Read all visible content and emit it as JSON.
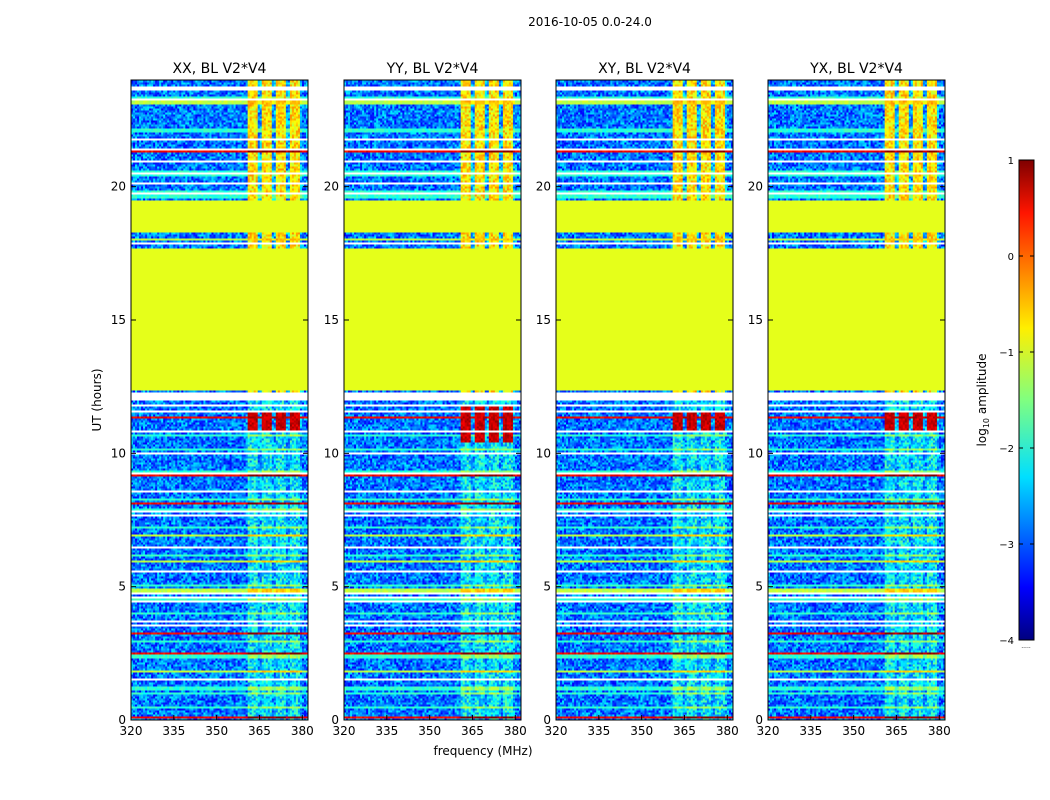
{
  "suptitle": "2016-10-05 0.0-24.0",
  "chart_data": {
    "type": "heatmap",
    "panels": [
      {
        "title": "XX, BL V2*V4",
        "strong_rfi_hours": [
          10.8,
          11.6
        ]
      },
      {
        "title": "YY, BL V2*V4",
        "strong_rfi_hours": [
          10.4,
          11.8
        ]
      },
      {
        "title": "XY, BL V2*V4",
        "strong_rfi_hours": [
          10.8,
          11.6
        ]
      },
      {
        "title": "YX, BL V2*V4",
        "strong_rfi_hours": [
          10.8,
          11.6
        ]
      }
    ],
    "xlabel": "frequency (MHz)",
    "ylabel": "UT (hours)",
    "xlim": [
      320,
      382
    ],
    "ylim": [
      0,
      24
    ],
    "xticks": [
      320,
      335,
      350,
      365,
      380
    ],
    "yticks": [
      0,
      5,
      10,
      15,
      20
    ],
    "flagged_time_ranges": [
      [
        12.4,
        17.7
      ],
      [
        18.3,
        19.5
      ]
    ],
    "flagged_value": -1.0,
    "baseline_log_amplitude": -2.8,
    "rfi_band_mhz": [
      361,
      380
    ],
    "rfi_channels_mhz": [
      362.5,
      367.5,
      372.5,
      377.5
    ],
    "colorbar": {
      "label": "log",
      "label_sub": "10",
      "label_suffix": "amplitude",
      "vmin": -4,
      "vmax": 1,
      "ticks": [
        1,
        0,
        -1,
        -2,
        -3,
        -4
      ],
      "tick_labels": [
        "1",
        "0",
        "−1",
        "−2",
        "−3",
        "−4"
      ],
      "colormap": "jet",
      "footer": "....."
    }
  }
}
